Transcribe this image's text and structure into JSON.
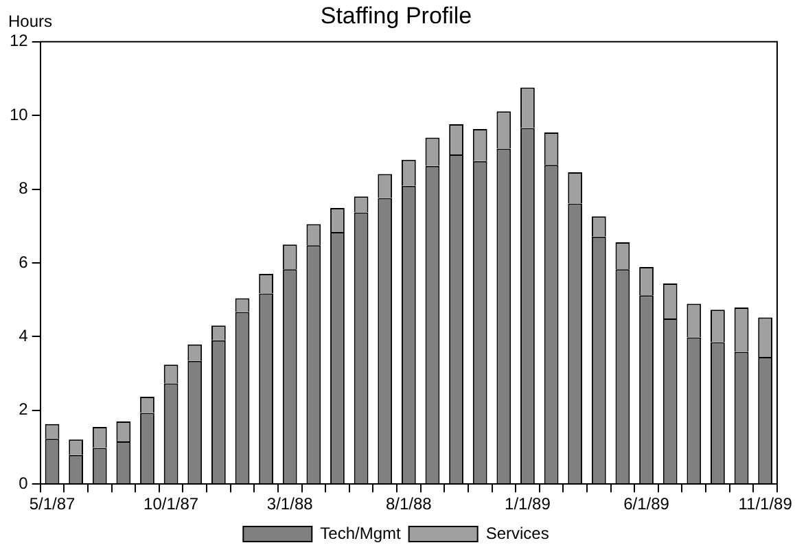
{
  "chart_data": {
    "type": "bar",
    "title": "Staffing Profile",
    "ylabel": "Hours",
    "stacked": true,
    "legend": "bottom",
    "grid": false,
    "categories": [
      "5/1/87",
      null,
      null,
      null,
      null,
      "10/1/87",
      null,
      null,
      null,
      null,
      "3/1/88",
      null,
      null,
      null,
      null,
      "8/1/88",
      null,
      null,
      null,
      null,
      "1/1/89",
      null,
      null,
      null,
      null,
      "6/1/89",
      null,
      null,
      null,
      null,
      "11/1/89"
    ],
    "series": [
      {
        "name": "Tech/Mgmt",
        "color": "#808080",
        "values": [
          1.23,
          0.79,
          0.98,
          1.16,
          1.93,
          2.73,
          3.34,
          3.9,
          4.67,
          5.17,
          5.83,
          6.48,
          6.84,
          7.37,
          7.76,
          8.09,
          8.63,
          8.94,
          8.76,
          9.1,
          9.66,
          8.66,
          7.61,
          6.71,
          5.83,
          5.12,
          4.49,
          3.98,
          3.85,
          3.59,
          3.45
        ]
      },
      {
        "name": "Services",
        "color": "#a0a0a0",
        "values": [
          0.4,
          0.42,
          0.57,
          0.54,
          0.44,
          0.51,
          0.45,
          0.4,
          0.37,
          0.53,
          0.67,
          0.57,
          0.65,
          0.43,
          0.65,
          0.71,
          0.77,
          0.82,
          0.87,
          1.01,
          1.1,
          0.88,
          0.85,
          0.55,
          0.73,
          0.77,
          0.95,
          0.91,
          0.88,
          1.2,
          1.07
        ]
      }
    ],
    "ylim": [
      0,
      12
    ],
    "yticks": [
      0,
      2,
      4,
      6,
      8,
      10,
      12
    ]
  }
}
